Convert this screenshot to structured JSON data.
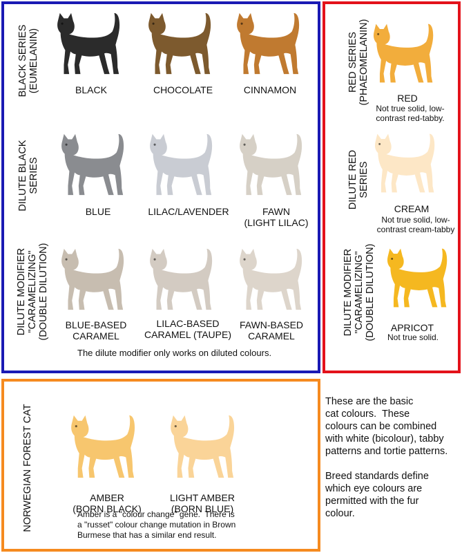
{
  "series": {
    "black": "BLACK SERIES\n(EUMELANIN)",
    "dilute_black": "DILUTE BLACK\nSERIES",
    "dilute_modifier": "DILUTE MODIFIER\n\"CARAMELIZING\"\n(DOUBLE DILUTION)",
    "red": "RED SERIES\n(PHAEOMELANIN)",
    "dilute_red": "DILUTE RED\nSERIES",
    "dilute_modifier_red": "DILUTE MODIFIER\n\"CARAMELIZING\"\n(DOUBLE DILUTION)",
    "norwegian": "NORWEGIAN FOREST CAT"
  },
  "cats": [
    {
      "id": "black",
      "label": "BLACK",
      "color": "#2b2b2b"
    },
    {
      "id": "chocolate",
      "label": "CHOCOLATE",
      "color": "#7d5a2e"
    },
    {
      "id": "cinnamon",
      "label": "CINNAMON",
      "color": "#c07a30"
    },
    {
      "id": "blue",
      "label": "BLUE",
      "color": "#8a8c90"
    },
    {
      "id": "lilac",
      "label": "LILAC/LAVENDER",
      "color": "#c9ccd3"
    },
    {
      "id": "fawn",
      "label": "FAWN\n(LIGHT LILAC)",
      "color": "#d6d0c6"
    },
    {
      "id": "blue-caramel",
      "label": "BLUE-BASED\nCARAMEL",
      "color": "#c7bdb0"
    },
    {
      "id": "lilac-caramel",
      "label": "LILAC-BASED\nCARAMEL (TAUPE)",
      "color": "#d3cbc2"
    },
    {
      "id": "fawn-caramel",
      "label": "FAWN-BASED\nCARAMEL",
      "color": "#ddd5cb"
    },
    {
      "id": "red",
      "label": "RED",
      "color": "#f2ad3c"
    },
    {
      "id": "cream",
      "label": "CREAM",
      "color": "#fde7c6"
    },
    {
      "id": "apricot",
      "label": "APRICOT",
      "color": "#f5b820"
    },
    {
      "id": "amber",
      "label": "AMBER\n(BORN BLACK)",
      "color": "#f7c66e"
    },
    {
      "id": "light-amber",
      "label": "LIGHT AMBER\n(BORN BLUE)",
      "color": "#fad498"
    }
  ],
  "subnotes": {
    "red": "Not true solid, low-\ncontrast red-tabby.",
    "cream": "Not true solid, low-\ncontrast cream-tabby",
    "apricot": "Not true solid."
  },
  "notes": {
    "dilute_modifier": "The dilute modifier only works on diluted colours.",
    "amber": "Amber is a \"colour change\" gene.  There is\na \"russet\" colour change mutation in Brown\nBurmese that has a similar end result."
  },
  "side_text": {
    "p1": "These are the basic\ncat colours.  These\ncolours can be combined\nwith white (bicolour), tabby\npatterns and tortie patterns.",
    "p2": "Breed standards define\nwhich eye colours are\npermitted with the fur\ncolour."
  }
}
